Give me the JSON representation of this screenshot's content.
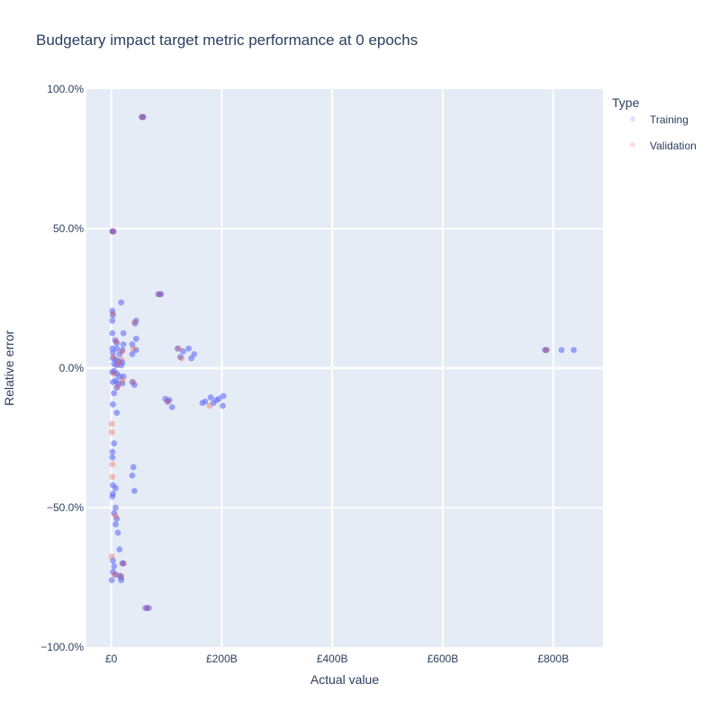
{
  "colors": {
    "background": "#ffffff",
    "plot_background": "#e5ecf6",
    "grid": "#ffffff",
    "text": "#2a3f5f",
    "training": "#636efa",
    "validation": "#ef553b"
  },
  "chart_data": {
    "type": "scatter",
    "title": "Budgetary impact target metric performance at 0 epochs",
    "xlabel": "Actual value",
    "ylabel": "Relative error",
    "xlim": [
      -45,
      890
    ],
    "ylim": [
      -1.0,
      1.0
    ],
    "x_unit": "£ billions",
    "x_ticks": [
      0,
      200,
      400,
      600,
      800
    ],
    "x_tick_labels": [
      "£0",
      "£200B",
      "£400B",
      "£600B",
      "£800B"
    ],
    "y_ticks": [
      -1.0,
      -0.5,
      0.0,
      0.5,
      1.0
    ],
    "y_tick_labels": [
      "−100.0%",
      "−50.0%",
      "0.0%",
      "50.0%",
      "100.0%"
    ],
    "grid": true,
    "legend": {
      "title": "Type",
      "placement": "right",
      "entries": [
        "Training",
        "Validation"
      ]
    },
    "series": [
      {
        "name": "Training",
        "points": [
          [
            55,
            0.9
          ],
          [
            57,
            0.9
          ],
          [
            58,
            0.9
          ],
          [
            2,
            0.49
          ],
          [
            3,
            0.49
          ],
          [
            4,
            0.49
          ],
          [
            85,
            0.265
          ],
          [
            88,
            0.265
          ],
          [
            90,
            0.265
          ],
          [
            18,
            0.235
          ],
          [
            2,
            0.205
          ],
          [
            3,
            0.19
          ],
          [
            2,
            0.17
          ],
          [
            45,
            0.17
          ],
          [
            43,
            0.16
          ],
          [
            2,
            0.125
          ],
          [
            22,
            0.125
          ],
          [
            45,
            0.105
          ],
          [
            7,
            0.1
          ],
          [
            10,
            0.09
          ],
          [
            22,
            0.085
          ],
          [
            38,
            0.085
          ],
          [
            2,
            0.07
          ],
          [
            10,
            0.07
          ],
          [
            20,
            0.065
          ],
          [
            45,
            0.065
          ],
          [
            120,
            0.07
          ],
          [
            140,
            0.07
          ],
          [
            130,
            0.06
          ],
          [
            3,
            0.055
          ],
          [
            15,
            0.05
          ],
          [
            38,
            0.05
          ],
          [
            150,
            0.05
          ],
          [
            125,
            0.04
          ],
          [
            145,
            0.035
          ],
          [
            3,
            0.035
          ],
          [
            8,
            0.03
          ],
          [
            13,
            0.025
          ],
          [
            20,
            0.02
          ],
          [
            5,
            0.015
          ],
          [
            10,
            0.01
          ],
          [
            18,
            0.01
          ],
          [
            2,
            -0.015
          ],
          [
            5,
            -0.01
          ],
          [
            10,
            -0.02
          ],
          [
            15,
            -0.03
          ],
          [
            22,
            -0.03
          ],
          [
            8,
            -0.045
          ],
          [
            3,
            -0.05
          ],
          [
            12,
            -0.055
          ],
          [
            20,
            -0.055
          ],
          [
            38,
            -0.05
          ],
          [
            42,
            -0.06
          ],
          [
            10,
            -0.07
          ],
          [
            5,
            -0.09
          ],
          [
            98,
            -0.11
          ],
          [
            102,
            -0.12
          ],
          [
            105,
            -0.115
          ],
          [
            110,
            -0.14
          ],
          [
            165,
            -0.125
          ],
          [
            170,
            -0.12
          ],
          [
            180,
            -0.105
          ],
          [
            185,
            -0.125
          ],
          [
            190,
            -0.115
          ],
          [
            195,
            -0.11
          ],
          [
            203,
            -0.1
          ],
          [
            202,
            -0.135
          ],
          [
            3,
            -0.13
          ],
          [
            10,
            -0.16
          ],
          [
            5,
            -0.27
          ],
          [
            2,
            -0.3
          ],
          [
            2,
            -0.32
          ],
          [
            40,
            -0.355
          ],
          [
            38,
            -0.385
          ],
          [
            42,
            -0.44
          ],
          [
            8,
            -0.43
          ],
          [
            3,
            -0.42
          ],
          [
            2,
            -0.46
          ],
          [
            3,
            -0.45
          ],
          [
            8,
            -0.5
          ],
          [
            5,
            -0.52
          ],
          [
            10,
            -0.54
          ],
          [
            8,
            -0.56
          ],
          [
            12,
            -0.59
          ],
          [
            15,
            -0.65
          ],
          [
            3,
            -0.69
          ],
          [
            20,
            -0.7
          ],
          [
            22,
            -0.7
          ],
          [
            5,
            -0.71
          ],
          [
            3,
            -0.73
          ],
          [
            8,
            -0.74
          ],
          [
            15,
            -0.745
          ],
          [
            18,
            -0.75
          ],
          [
            18,
            -0.76
          ],
          [
            1,
            -0.76
          ],
          [
            62,
            -0.86
          ],
          [
            65,
            -0.86
          ],
          [
            68,
            -0.86
          ],
          [
            785,
            0.065
          ],
          [
            788,
            0.065
          ],
          [
            815,
            0.065
          ],
          [
            837,
            0.065
          ]
        ]
      },
      {
        "name": "Validation",
        "points": [
          [
            56,
            0.9
          ],
          [
            3,
            0.49
          ],
          [
            87,
            0.265
          ],
          [
            42,
            0.165
          ],
          [
            3,
            0.195
          ],
          [
            9,
            0.095
          ],
          [
            40,
            0.07
          ],
          [
            20,
            0.06
          ],
          [
            122,
            0.07
          ],
          [
            4,
            0.04
          ],
          [
            127,
            0.035
          ],
          [
            18,
            0.03
          ],
          [
            12,
            0.015
          ],
          [
            5,
            -0.02
          ],
          [
            40,
            -0.05
          ],
          [
            12,
            -0.065
          ],
          [
            20,
            -0.045
          ],
          [
            102,
            -0.12
          ],
          [
            178,
            -0.135
          ],
          [
            1,
            -0.2
          ],
          [
            1,
            -0.23
          ],
          [
            2,
            -0.345
          ],
          [
            2,
            -0.39
          ],
          [
            8,
            -0.53
          ],
          [
            1,
            -0.675
          ],
          [
            5,
            -0.74
          ],
          [
            18,
            -0.745
          ],
          [
            22,
            -0.7
          ],
          [
            65,
            -0.86
          ],
          [
            787,
            0.065
          ]
        ]
      }
    ]
  }
}
